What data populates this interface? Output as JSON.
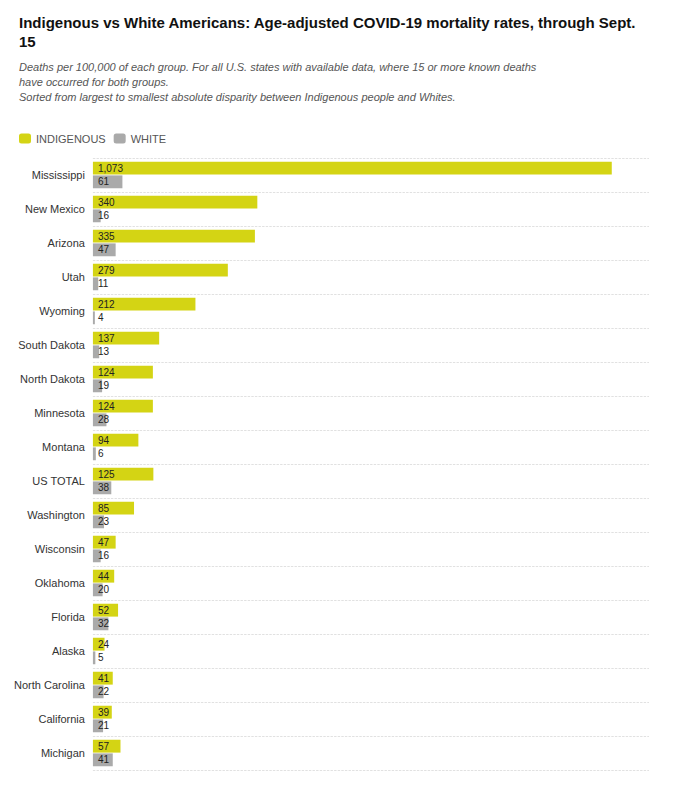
{
  "chart_data": {
    "type": "bar",
    "orientation": "horizontal",
    "title": "Indigenous vs White Americans: Age-adjusted COVID-19 mortality rates, through Sept.\n15",
    "subtitle": "Deaths per 100,000 of each group. For all U.S. states with available data, where 15 or more known deaths have occurred for both groups.\nSorted from largest to smallest absolute disparity between Indigenous people and Whites.",
    "categories": [
      "Mississippi",
      "New Mexico",
      "Arizona",
      "Utah",
      "Wyoming",
      "South Dakota",
      "North Dakota",
      "Minnesota",
      "Montana",
      "US TOTAL",
      "Washington",
      "Wisconsin",
      "Oklahoma",
      "Florida",
      "Alaska",
      "North Carolina",
      "California",
      "Michigan"
    ],
    "series": [
      {
        "name": "INDIGENOUS",
        "color": "#d4d414",
        "values": [
          1073,
          340,
          335,
          279,
          212,
          137,
          124,
          124,
          94,
          125,
          85,
          47,
          44,
          52,
          24,
          41,
          39,
          57
        ],
        "value_labels": [
          "1,073",
          "340",
          "335",
          "279",
          "212",
          "137",
          "124",
          "124",
          "94",
          "125",
          "85",
          "47",
          "44",
          "52",
          "24",
          "41",
          "39",
          "57"
        ]
      },
      {
        "name": "WHITE",
        "color": "#aaaaaa",
        "values": [
          61,
          16,
          47,
          11,
          4,
          13,
          19,
          28,
          6,
          38,
          23,
          16,
          20,
          32,
          5,
          22,
          21,
          41
        ]
      }
    ],
    "xlim": [
      0,
      1150
    ],
    "data_labels": true,
    "tick_labels": "y",
    "grid": false,
    "legend": "upper left"
  }
}
